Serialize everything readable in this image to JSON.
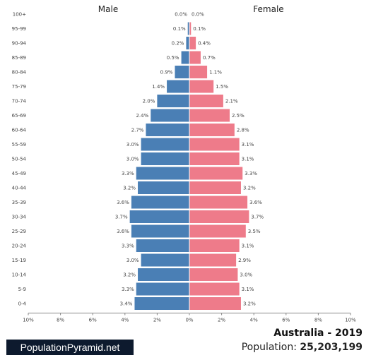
{
  "chart_data": {
    "type": "bar",
    "orientation": "horizontal-pyramid",
    "categories": [
      "100+",
      "95-99",
      "90-94",
      "85-89",
      "80-84",
      "75-79",
      "70-74",
      "65-69",
      "60-64",
      "55-59",
      "50-54",
      "45-49",
      "40-44",
      "35-39",
      "30-34",
      "25-29",
      "20-24",
      "15-19",
      "10-14",
      "5-9",
      "0-4"
    ],
    "series": [
      {
        "name": "Male",
        "color": "#4a7fb5",
        "values": [
          0.0,
          0.1,
          0.2,
          0.5,
          0.9,
          1.4,
          2.0,
          2.4,
          2.7,
          3.0,
          3.0,
          3.3,
          3.2,
          3.6,
          3.7,
          3.6,
          3.3,
          3.0,
          3.2,
          3.3,
          3.4
        ],
        "value_labels": [
          "0.0%",
          "0.1%",
          "0.2%",
          "0.5%",
          "0.9%",
          "1.4%",
          "2.0%",
          "2.4%",
          "2.7%",
          "3.0%",
          "3.0%",
          "3.3%",
          "3.2%",
          "3.6%",
          "3.7%",
          "3.6%",
          "3.3%",
          "3.0%",
          "3.2%",
          "3.3%",
          "3.4%"
        ]
      },
      {
        "name": "Female",
        "color": "#ee7b8a",
        "values": [
          0.0,
          0.1,
          0.4,
          0.7,
          1.1,
          1.5,
          2.1,
          2.5,
          2.8,
          3.1,
          3.1,
          3.3,
          3.2,
          3.6,
          3.7,
          3.5,
          3.1,
          2.9,
          3.0,
          3.1,
          3.2
        ],
        "value_labels": [
          "0.0%",
          "0.1%",
          "0.4%",
          "0.7%",
          "1.1%",
          "1.5%",
          "2.1%",
          "2.5%",
          "2.8%",
          "3.1%",
          "3.1%",
          "3.3%",
          "3.2%",
          "3.6%",
          "3.7%",
          "3.5%",
          "3.1%",
          "2.9%",
          "3.0%",
          "3.1%",
          "3.2%"
        ]
      }
    ],
    "xlim": [
      -10,
      10
    ],
    "x_ticks": [
      "10%",
      "8%",
      "6%",
      "4%",
      "2%",
      "0%",
      "2%",
      "4%",
      "6%",
      "8%",
      "10%"
    ],
    "grid": false
  },
  "titles": {
    "male": "Male",
    "female": "Female"
  },
  "footer": {
    "brand": "PopulationPyramid.net",
    "country_year": "Australia - 2019",
    "population_label": "Population:",
    "population_value": "25,203,199"
  }
}
